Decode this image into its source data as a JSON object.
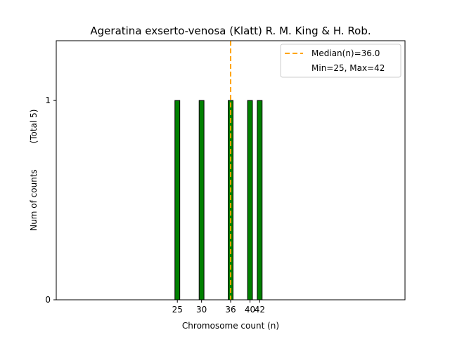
{
  "chart_data": {
    "type": "bar",
    "title": "Ageratina exserto-venosa (Klatt) R. M. King & H. Rob.",
    "xlabel": "Chromosome count (n)",
    "ylabel": "Num of counts",
    "ylabel_note": "(Total 5)",
    "x": [
      25,
      30,
      36,
      40,
      42
    ],
    "values": [
      1,
      1,
      1,
      1,
      1
    ],
    "x_ticks": [
      25,
      30,
      36,
      40,
      42
    ],
    "y_ticks": [
      0,
      1
    ],
    "xlim": [
      0,
      72
    ],
    "ylim": [
      0,
      1.3
    ],
    "bar_width": 1,
    "bar_color": "#008000",
    "bar_edge_color": "#000000",
    "median": 36.0,
    "median_color": "#FFA500",
    "legend": {
      "placement": "top-right",
      "median_label": "Median(n)=36.0",
      "range_label": "Min=25, Max=42"
    },
    "grid": false
  }
}
